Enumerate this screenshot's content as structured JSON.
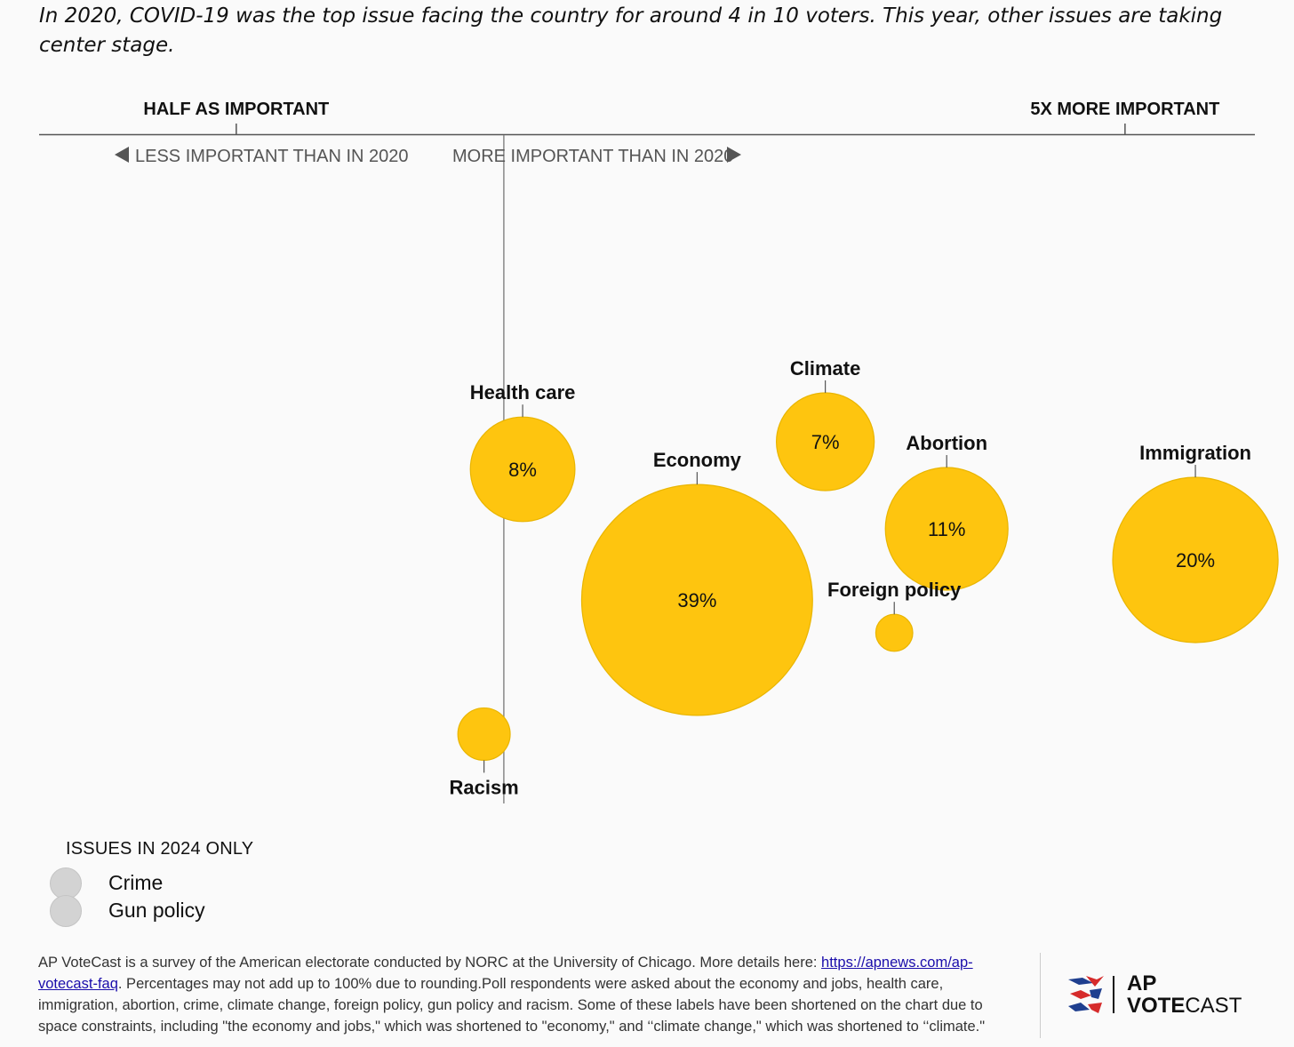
{
  "subtitle": "In 2020, COVID-19 was the top issue facing the country for around 4 in 10 voters. This year, other issues are taking center stage.",
  "chart_data": {
    "type": "scatter",
    "subtype": "bubble",
    "x_scale": "log",
    "x_unit": "importance in 2024 relative to 2020",
    "x_reference": 1,
    "x_ticks": [
      {
        "value": 0.5,
        "label": "HALF AS IMPORTANT"
      },
      {
        "value": 5,
        "label": "5X MORE IMPORTANT"
      }
    ],
    "xlim": [
      0.3,
      7
    ],
    "direction_labels": {
      "left": "LESS IMPORTANT THAN IN 2020",
      "right": "MORE IMPORTANT THAN IN 2020"
    },
    "size_encodes": "share of voters naming issue as top issue in 2024 (%)",
    "bubble_color": "#FEC50F",
    "bubble_stroke": "#E9B500",
    "series": [
      {
        "issue": "Health care",
        "x": 1.05,
        "value": 8,
        "value_label": "8%",
        "label_pos": "above"
      },
      {
        "issue": "Economy",
        "x": 1.65,
        "value": 39,
        "value_label": "39%",
        "label_pos": "above"
      },
      {
        "issue": "Climate",
        "x": 2.3,
        "value": 7,
        "value_label": "7%",
        "label_pos": "above"
      },
      {
        "issue": "Abortion",
        "x": 3.15,
        "value": 11,
        "value_label": "11%",
        "label_pos": "above"
      },
      {
        "issue": "Foreign policy",
        "x": 2.75,
        "value": 1,
        "value_label": "",
        "label_pos": "above"
      },
      {
        "issue": "Immigration",
        "x": 6.0,
        "value": 20,
        "value_label": "20%",
        "label_pos": "above"
      },
      {
        "issue": "Racism",
        "x": 0.95,
        "value": 2,
        "value_label": "",
        "label_pos": "below"
      }
    ]
  },
  "legend": {
    "title": "ISSUES IN 2024 ONLY",
    "items": [
      "Crime",
      "Gun policy"
    ],
    "color": "#D3D3D3"
  },
  "footnote": {
    "before_link": "AP VoteCast is a survey of the American electorate conducted by NORC at the University of Chicago. More details here: ",
    "link": "https://apnews.com/ap-votecast-faq",
    "after_link": ". Percentages may not add up to 100% due to rounding.Poll respondents were asked about the economy and jobs, health care, immigration, abortion, crime, climate change, foreign policy, gun policy and racism. Some of these labels have been shortened on the chart due to space constraints, including \"the economy and jobs,\" which was shortened to \"economy,\" and ‘‘climate change,\" which was shortened to ‘‘climate.\""
  },
  "logo": {
    "line1": "AP",
    "line2_bold": "VOTE",
    "line2_rest": "CAST"
  }
}
